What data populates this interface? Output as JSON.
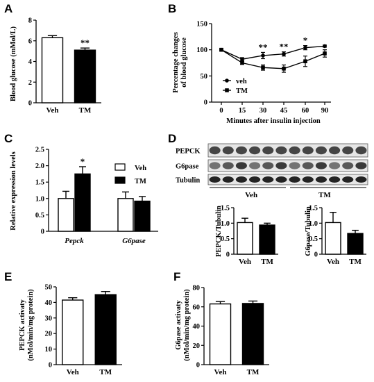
{
  "panels": {
    "A": "A",
    "B": "B",
    "C": "C",
    "D": "D",
    "E": "E",
    "F": "F"
  },
  "colors": {
    "veh": "#ffffff",
    "tm": "#000000",
    "stroke": "#000000",
    "blot_bg": "#e6e6e6"
  },
  "chart_data": [
    {
      "id": "A",
      "type": "bar",
      "categories": [
        "Veh",
        "TM"
      ],
      "values": [
        6.3,
        5.1
      ],
      "errors": [
        0.2,
        0.2
      ],
      "fills": [
        "white",
        "black"
      ],
      "ylabel": "Blood glucose (mMol/L)",
      "ylim": [
        0,
        8
      ],
      "yticks": [
        "0",
        "2",
        "4",
        "6",
        "8"
      ],
      "annotations": [
        {
          "category": "TM",
          "text": "**"
        }
      ]
    },
    {
      "id": "B",
      "type": "line",
      "x": [
        0,
        15,
        30,
        45,
        60,
        90
      ],
      "xticks": [
        "0",
        "15",
        "30",
        "45",
        "60",
        "90"
      ],
      "xlabel": "Minutes after insulin  injection",
      "ylabel": "Percentage changes of blood glucose",
      "ylabel_lines": [
        "Percentage changes",
        "of blood glucose"
      ],
      "ylim": [
        0,
        150
      ],
      "yticks": [
        "0",
        "50",
        "100",
        "150"
      ],
      "series": [
        {
          "name": "veh",
          "marker": "circle",
          "values": [
            100,
            82,
            89,
            92,
            104,
            107
          ],
          "errors": [
            2,
            3,
            6,
            4,
            4,
            2
          ]
        },
        {
          "name": "TM",
          "marker": "square",
          "values": [
            100,
            75,
            66,
            64,
            78,
            93
          ],
          "errors": [
            2,
            3,
            5,
            7,
            10,
            7
          ]
        }
      ],
      "legend": [
        "veh",
        "TM"
      ],
      "annotations": [
        {
          "x": 30,
          "text": "**"
        },
        {
          "x": 45,
          "text": "**"
        },
        {
          "x": 60,
          "text": "*"
        }
      ]
    },
    {
      "id": "C",
      "type": "bar",
      "categories": [
        "Pepck",
        "G6pase"
      ],
      "series": [
        {
          "name": "Veh",
          "values": [
            1.0,
            1.0
          ],
          "errors": [
            0.22,
            0.2
          ]
        },
        {
          "name": "TM",
          "values": [
            1.75,
            0.92
          ],
          "errors": [
            0.22,
            0.14
          ]
        }
      ],
      "ylabel": "Relative expression levels",
      "ylim": [
        0,
        2.5
      ],
      "yticks": [
        "0",
        "0.5",
        "1.0",
        "1.5",
        "2.0",
        "2.5"
      ],
      "legend": [
        "Veh",
        "TM"
      ],
      "annotations": [
        {
          "category": "Pepck",
          "series": "TM",
          "text": "*"
        }
      ]
    },
    {
      "id": "D1",
      "type": "bar",
      "categories": [
        "Veh",
        "TM"
      ],
      "values": [
        1.02,
        0.94
      ],
      "errors": [
        0.14,
        0.06
      ],
      "fills": [
        "white",
        "black"
      ],
      "ylabel": "PEPCK/Tubulin",
      "ylim": [
        0,
        1.5
      ],
      "yticks": [
        "0",
        "0.5",
        "1.0",
        "1.5"
      ]
    },
    {
      "id": "D2",
      "type": "bar",
      "categories": [
        "Veh",
        "TM"
      ],
      "values": [
        1.02,
        0.67
      ],
      "errors": [
        0.33,
        0.1
      ],
      "fills": [
        "white",
        "black"
      ],
      "ylabel": "G6pase/Tubulin",
      "ylim": [
        0,
        1.5
      ],
      "yticks": [
        "0",
        "0.5",
        "1.0",
        "1.5"
      ]
    },
    {
      "id": "E",
      "type": "bar",
      "categories": [
        "Veh",
        "TM"
      ],
      "values": [
        41.5,
        45
      ],
      "errors": [
        1.5,
        2
      ],
      "fills": [
        "white",
        "black"
      ],
      "ylabel_lines": [
        "PEPCK  activaty",
        "(nMol/min/mg  protein)"
      ],
      "ylim": [
        0,
        50
      ],
      "yticks": [
        "0",
        "10",
        "20",
        "30",
        "40",
        "50"
      ]
    },
    {
      "id": "F",
      "type": "bar",
      "categories": [
        "Veh",
        "TM"
      ],
      "values": [
        63,
        63.5
      ],
      "errors": [
        2.5,
        2.5
      ],
      "fills": [
        "white",
        "black"
      ],
      "ylabel_lines": [
        "G6pase activaty",
        "(nMol/min/mg  protein)"
      ],
      "ylim": [
        0,
        80
      ],
      "yticks": [
        "0",
        "20",
        "40",
        "60",
        "80"
      ]
    }
  ],
  "blot": {
    "rows": [
      "PEPCK",
      "G6pase",
      "Tubulin"
    ],
    "groups": [
      "Veh",
      "TM"
    ],
    "lanes_per_group": 6
  }
}
